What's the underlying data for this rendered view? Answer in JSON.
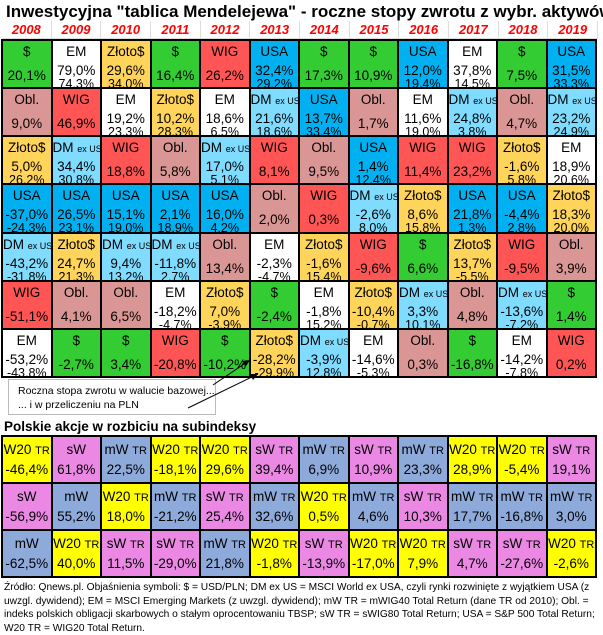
{
  "title": "Inwestycyjna \"tablica Mendelejewa\" - roczne stopy zwrotu z wybr. aktywów",
  "years": [
    "2008",
    "2009",
    "2010",
    "2011",
    "2012",
    "2013",
    "2014",
    "2015",
    "2016",
    "2017",
    "2018",
    "2019"
  ],
  "assets": {
    "$": {
      "color": "#33cc33",
      "suffix": ""
    },
    "EM": {
      "color": "#ffffff",
      "suffix": ""
    },
    "Złoto$": {
      "color": "#ffd45a",
      "suffix": ""
    },
    "WIG": {
      "color": "#ff5555",
      "suffix": ""
    },
    "USA": {
      "color": "#00b0f0",
      "suffix": ""
    },
    "Obl.": {
      "color": "#da9694",
      "suffix": ""
    },
    "DM": {
      "color": "#80dcff",
      "suffix": "ex US"
    }
  },
  "top": {
    "rows": [
      [
        [
          "$",
          "20,1%",
          ""
        ],
        [
          "EM",
          "79,0%",
          "74,3%"
        ],
        [
          "Złoto$",
          "29,6%",
          "34,0%"
        ],
        [
          "$",
          "16,4%",
          ""
        ],
        [
          "WIG",
          "26,2%",
          ""
        ],
        [
          "USA",
          "32,4%",
          "29,2%"
        ],
        [
          "$",
          "17,3%",
          ""
        ],
        [
          "$",
          "10,9%",
          ""
        ],
        [
          "USA",
          "12,0%",
          "19,4%"
        ],
        [
          "EM",
          "37,8%",
          "14,5%"
        ],
        [
          "$",
          "7,5%",
          ""
        ],
        [
          "USA",
          "31,5%",
          "33,3%"
        ]
      ],
      [
        [
          "Obl.",
          "9,0%",
          ""
        ],
        [
          "WIG",
          "46,9%",
          ""
        ],
        [
          "EM",
          "19,2%",
          "23,3%"
        ],
        [
          "Złoto$",
          "10,2%",
          "28,3%"
        ],
        [
          "EM",
          "18,6%",
          "6,5%"
        ],
        [
          "DM",
          "21,6%",
          "18,6%"
        ],
        [
          "USA",
          "13,7%",
          "33,4%"
        ],
        [
          "Obl.",
          "1,7%",
          ""
        ],
        [
          "EM",
          "11,6%",
          "19,0%"
        ],
        [
          "DM",
          "24,8%",
          "3,8%"
        ],
        [
          "Obl.",
          "4,7%",
          ""
        ],
        [
          "DM",
          "23,2%",
          "24,9%"
        ]
      ],
      [
        [
          "Złoto$",
          "5,0%",
          "26,2%"
        ],
        [
          "DM",
          "34,4%",
          "30,8%"
        ],
        [
          "WIG",
          "18,8%",
          ""
        ],
        [
          "Obl.",
          "5,8%",
          ""
        ],
        [
          "DM",
          "17,0%",
          "5,1%"
        ],
        [
          "WIG",
          "8,1%",
          ""
        ],
        [
          "Obl.",
          "9,5%",
          ""
        ],
        [
          "USA",
          "1,4%",
          "12,4%"
        ],
        [
          "WIG",
          "11,4%",
          ""
        ],
        [
          "WIG",
          "23,2%",
          ""
        ],
        [
          "Złoto$",
          "-1,6%",
          "5,8%"
        ],
        [
          "EM",
          "18,9%",
          "20,6%"
        ]
      ],
      [
        [
          "USA",
          "-37,0%",
          "-24,3%"
        ],
        [
          "USA",
          "26,5%",
          "23,1%"
        ],
        [
          "USA",
          "15,1%",
          "19,0%"
        ],
        [
          "USA",
          "2,1%",
          "18,9%"
        ],
        [
          "USA",
          "16,0%",
          "4,2%"
        ],
        [
          "Obl.",
          "2,0%",
          ""
        ],
        [
          "WIG",
          "0,3%",
          ""
        ],
        [
          "DM",
          "-2,6%",
          "8,0%"
        ],
        [
          "Złoto$",
          "8,6%",
          "15,8%"
        ],
        [
          "USA",
          "21,8%",
          "1,3%"
        ],
        [
          "USA",
          "-4,4%",
          "2,8%"
        ],
        [
          "Złoto$",
          "18,3%",
          "20,0%"
        ]
      ],
      [
        [
          "DM",
          "-43,2%",
          "-31,8%"
        ],
        [
          "Złoto$",
          "24,7%",
          "21,3%"
        ],
        [
          "DM",
          "9,4%",
          "13,2%"
        ],
        [
          "DM",
          "-11,8%",
          "2,7%"
        ],
        [
          "Obl.",
          "13,4%",
          ""
        ],
        [
          "EM",
          "-2,3%",
          "-4,7%"
        ],
        [
          "Złoto$",
          "-1,6%",
          "15,4%"
        ],
        [
          "WIG",
          "-9,6%",
          ""
        ],
        [
          "$",
          "6,6%",
          ""
        ],
        [
          "Złoto$",
          "13,7%",
          "-5,5%"
        ],
        [
          "WIG",
          "-9,5%",
          ""
        ],
        [
          "Obl.",
          "3,9%",
          ""
        ]
      ],
      [
        [
          "WIG",
          "-51,1%",
          ""
        ],
        [
          "Obl.",
          "4,1%",
          ""
        ],
        [
          "Obl.",
          "6,5%",
          ""
        ],
        [
          "EM",
          "-18,2%",
          "-4,7%"
        ],
        [
          "Złoto$",
          "7,0%",
          "-3,9%"
        ],
        [
          "$",
          "-2,4%",
          ""
        ],
        [
          "EM",
          "-1,8%",
          "15,2%"
        ],
        [
          "Złoto$",
          "-10,4%",
          "-0,7%"
        ],
        [
          "DM",
          "3,3%",
          "10,1%"
        ],
        [
          "Obl.",
          "4,8%",
          ""
        ],
        [
          "DM",
          "-13,6%",
          "-7,2%"
        ],
        [
          "$",
          "1,4%",
          ""
        ]
      ],
      [
        [
          "EM",
          "-53,2%",
          "-43,8%"
        ],
        [
          "$",
          "-2,7%",
          ""
        ],
        [
          "$",
          "3,4%",
          ""
        ],
        [
          "WIG",
          "-20,8%",
          ""
        ],
        [
          "$",
          "-10,2%",
          ""
        ],
        [
          "Złoto$",
          "-28,2%",
          "-29,9%"
        ],
        [
          "DM",
          "-3,9%",
          "12,8%"
        ],
        [
          "EM",
          "-14,6%",
          "-5,3%"
        ],
        [
          "Obl.",
          "0,3%",
          ""
        ],
        [
          "$",
          "-16,8%",
          ""
        ],
        [
          "EM",
          "-14,2%",
          "-7,8%"
        ],
        [
          "WIG",
          "0,2%",
          ""
        ]
      ]
    ]
  },
  "note": {
    "line1": "Roczna stopa zwrotu w walucie  bazowej...",
    "line2": "... i w przeliczeniu na PLN"
  },
  "subtitle": "Polskie akcje w rozbiciu na subindeksy",
  "sub_colors": {
    "W20": "#ffff00",
    "sW": "#ea88e4",
    "mW": "#8eaadb"
  },
  "bottom": {
    "rows": [
      [
        [
          "W20",
          "TR",
          "-46,4%"
        ],
        [
          "sW",
          "",
          "61,8%"
        ],
        [
          "mW",
          "TR",
          "22,5%"
        ],
        [
          "W20",
          "TR",
          "-18,1%"
        ],
        [
          "W20",
          "TR",
          "29,6%"
        ],
        [
          "sW",
          "TR",
          "39,4%"
        ],
        [
          "mW",
          "TR",
          "6,9%"
        ],
        [
          "sW",
          "TR",
          "10,9%"
        ],
        [
          "mW",
          "TR",
          "23,3%"
        ],
        [
          "W20",
          "TR",
          "28,9%"
        ],
        [
          "W20",
          "TR",
          "-5,4%"
        ],
        [
          "sW",
          "TR",
          "19,1%"
        ]
      ],
      [
        [
          "sW",
          "",
          "-56,9%"
        ],
        [
          "mW",
          "",
          "55,2%"
        ],
        [
          "W20",
          "TR",
          "18,0%"
        ],
        [
          "mW",
          "TR",
          "-21,2%"
        ],
        [
          "sW",
          "TR",
          "25,4%"
        ],
        [
          "mW",
          "TR",
          "32,6%"
        ],
        [
          "W20",
          "TR",
          "0,5%"
        ],
        [
          "mW",
          "TR",
          "4,6%"
        ],
        [
          "sW",
          "TR",
          "10,3%"
        ],
        [
          "mW",
          "TR",
          "17,7%"
        ],
        [
          "mW",
          "TR",
          "-16,8%"
        ],
        [
          "mW",
          "TR",
          "3,0%"
        ]
      ],
      [
        [
          "mW",
          "",
          "-62,5%"
        ],
        [
          "W20",
          "TR",
          "40,0%"
        ],
        [
          "sW",
          "TR",
          "11,5%"
        ],
        [
          "sW",
          "TR",
          "-29,0%"
        ],
        [
          "mW",
          "TR",
          "21,8%"
        ],
        [
          "W20",
          "TR",
          "-1,8%"
        ],
        [
          "sW",
          "TR",
          "-13,9%"
        ],
        [
          "W20",
          "TR",
          "-17,0%"
        ],
        [
          "W20",
          "TR",
          "7,9%"
        ],
        [
          "sW",
          "TR",
          "4,7%"
        ],
        [
          "sW",
          "TR",
          "-27,6%"
        ],
        [
          "W20",
          "TR",
          "-2,6%"
        ]
      ]
    ]
  },
  "footnote": "Źródło: Qnews.pl. Objaśnienia symboli: $ = USD/PLN; DM ex US = MSCI World ex USA, czyli rynki rozwinięte z wyjątkiem USA (z uwzgl. dywidend); EM = MSCI Emerging Markets (z uwzgl. dywidend); mW TR = mWIG40 Total Return (dane TR od 2010); Obl. = indeks polskich obligacji skarbowych o stałym oprocentowaniu TBSP; sW TR = sWIG80 Total Return; USA = S&P 500 Total Return; W20 TR = WIG20 Total Return."
}
